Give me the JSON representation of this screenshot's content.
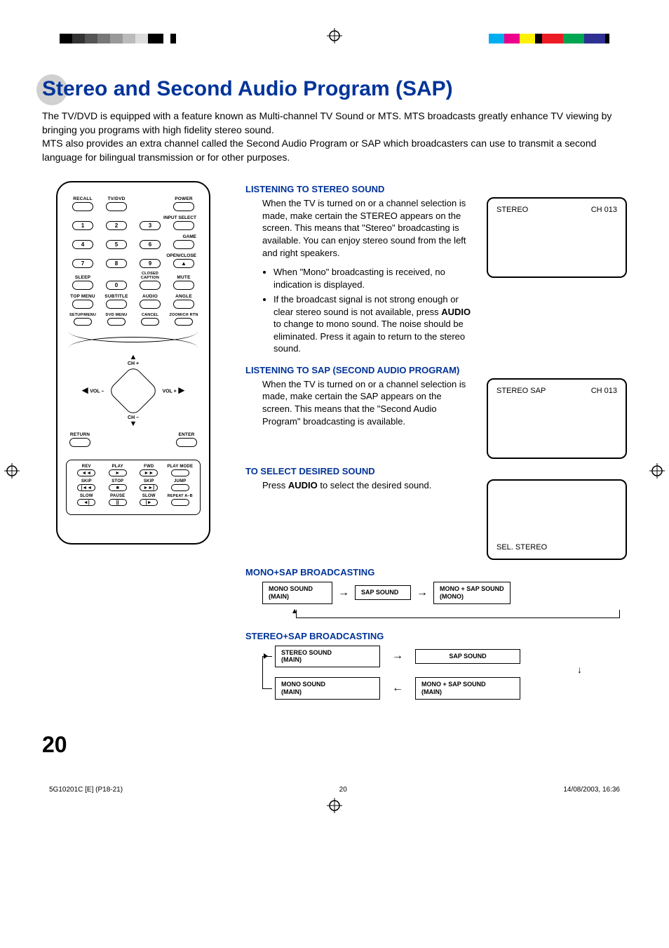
{
  "colorbar_left": [
    "#000000",
    "#333333",
    "#555555",
    "#777777",
    "#999999",
    "#bbbbbb",
    "#dddddd",
    "#000000",
    "#ffffff",
    "#000000",
    "#ffffff"
  ],
  "colorbar_left_widths": [
    18,
    18,
    18,
    18,
    18,
    18,
    18,
    22,
    10,
    8,
    12
  ],
  "colorbar_right": [
    "#00aeef",
    "#ec008c",
    "#fff200",
    "#000000",
    "#ed1c24",
    "#00a651",
    "#2e3192",
    "#000000"
  ],
  "colorbar_right_widths": [
    22,
    22,
    22,
    10,
    30,
    30,
    30,
    6
  ],
  "heading": "Stereo and Second Audio Program (SAP)",
  "intro1": "The TV/DVD is equipped with a feature known as Multi-channel TV Sound or MTS. MTS broadcasts greatly enhance TV viewing by bringing you programs with high fidelity stereo sound.",
  "intro2": "MTS also provides an extra channel called the Second Audio Program or SAP which broadcasters can use to transmit a second language for bilingual transmission or for other purposes.",
  "remote": {
    "row1": [
      "RECALL",
      "TV/DVD",
      "",
      "POWER"
    ],
    "input_select": "INPUT SELECT",
    "digits_r1": [
      "1",
      "2",
      "3",
      ""
    ],
    "game": "GAME",
    "digits_r2": [
      "4",
      "5",
      "6",
      ""
    ],
    "open_close": "OPEN/CLOSE",
    "digits_r3": [
      "7",
      "8",
      "9",
      ""
    ],
    "row_sleep": [
      "SLEEP",
      "",
      "CLOSED CAPTION",
      "MUTE"
    ],
    "zero": "0",
    "row_menu": [
      "TOP MENU",
      "SUBTITLE",
      "AUDIO",
      "ANGLE"
    ],
    "row_setup": [
      "SETUP/MENU",
      "DVD MENU",
      "CANCEL",
      "ZOOM/CH RTN"
    ],
    "dpad": {
      "up": "CH +",
      "down": "CH –",
      "left": "VOL –",
      "right": "VOL +"
    },
    "row_return": [
      "RETURN",
      "",
      "",
      "ENTER"
    ],
    "pb_r1": [
      "REV",
      "PLAY",
      "FWD",
      "PLAY MODE"
    ],
    "pb_r1_sym": [
      "◄◄",
      "►",
      "►►",
      ""
    ],
    "pb_r2": [
      "SKIP",
      "STOP",
      "SKIP",
      "JUMP"
    ],
    "pb_r2_sym": [
      "|◄◄",
      "■",
      "►►|",
      ""
    ],
    "pb_r3": [
      "SLOW",
      "PAUSE",
      "SLOW",
      "REPEAT A–B"
    ],
    "pb_r3_sym": [
      "◄|",
      "||",
      "|►",
      ""
    ]
  },
  "sect1": {
    "hdr": "LISTENING TO STEREO SOUND",
    "body": "When the TV is turned on or a channel selection is made, make certain the STEREO appears on the screen. This means that \"Stereo\" broadcasting is available. You can enjoy stereo sound from the left and right speakers.",
    "bullets": [
      "When \"Mono\" broadcasting is received, no indication is displayed.",
      "If the broadcast signal is not strong enough or clear stereo sound is not available, press AUDIO to change to mono sound. The noise should be eliminated. Press it again to return to the stereo sound."
    ],
    "tv_left": "STEREO",
    "tv_right": "CH 013"
  },
  "sect2": {
    "hdr": "LISTENING TO SAP (SECOND AUDIO PROGRAM)",
    "body": "When the TV is turned on or a channel selection is made, make certain the SAP appears on the screen. This means that the \"Second Audio Program\" broadcasting is available.",
    "tv_left": "STEREO  SAP",
    "tv_right": "CH 013"
  },
  "sect3": {
    "hdr": "TO SELECT DESIRED SOUND",
    "body_pre": "Press ",
    "body_bold": "AUDIO",
    "body_post": " to select the desired sound.",
    "tv_bottom": "SEL. STEREO"
  },
  "flow1": {
    "hdr": "MONO+SAP BROADCASTING",
    "boxes": [
      "MONO SOUND (MAIN)",
      "SAP SOUND",
      "MONO + SAP SOUND (MONO)"
    ]
  },
  "flow2": {
    "hdr": "STEREO+SAP BROADCASTING",
    "b1": "STEREO SOUND (MAIN)",
    "b2": "SAP SOUND",
    "b3": "MONO SOUND (MAIN)",
    "b4": "MONO + SAP SOUND (MAIN)"
  },
  "page_num": "20",
  "footer_left": "5G10201C [E] (P18-21)",
  "footer_center": "20",
  "footer_right": "14/08/2003, 16:36"
}
